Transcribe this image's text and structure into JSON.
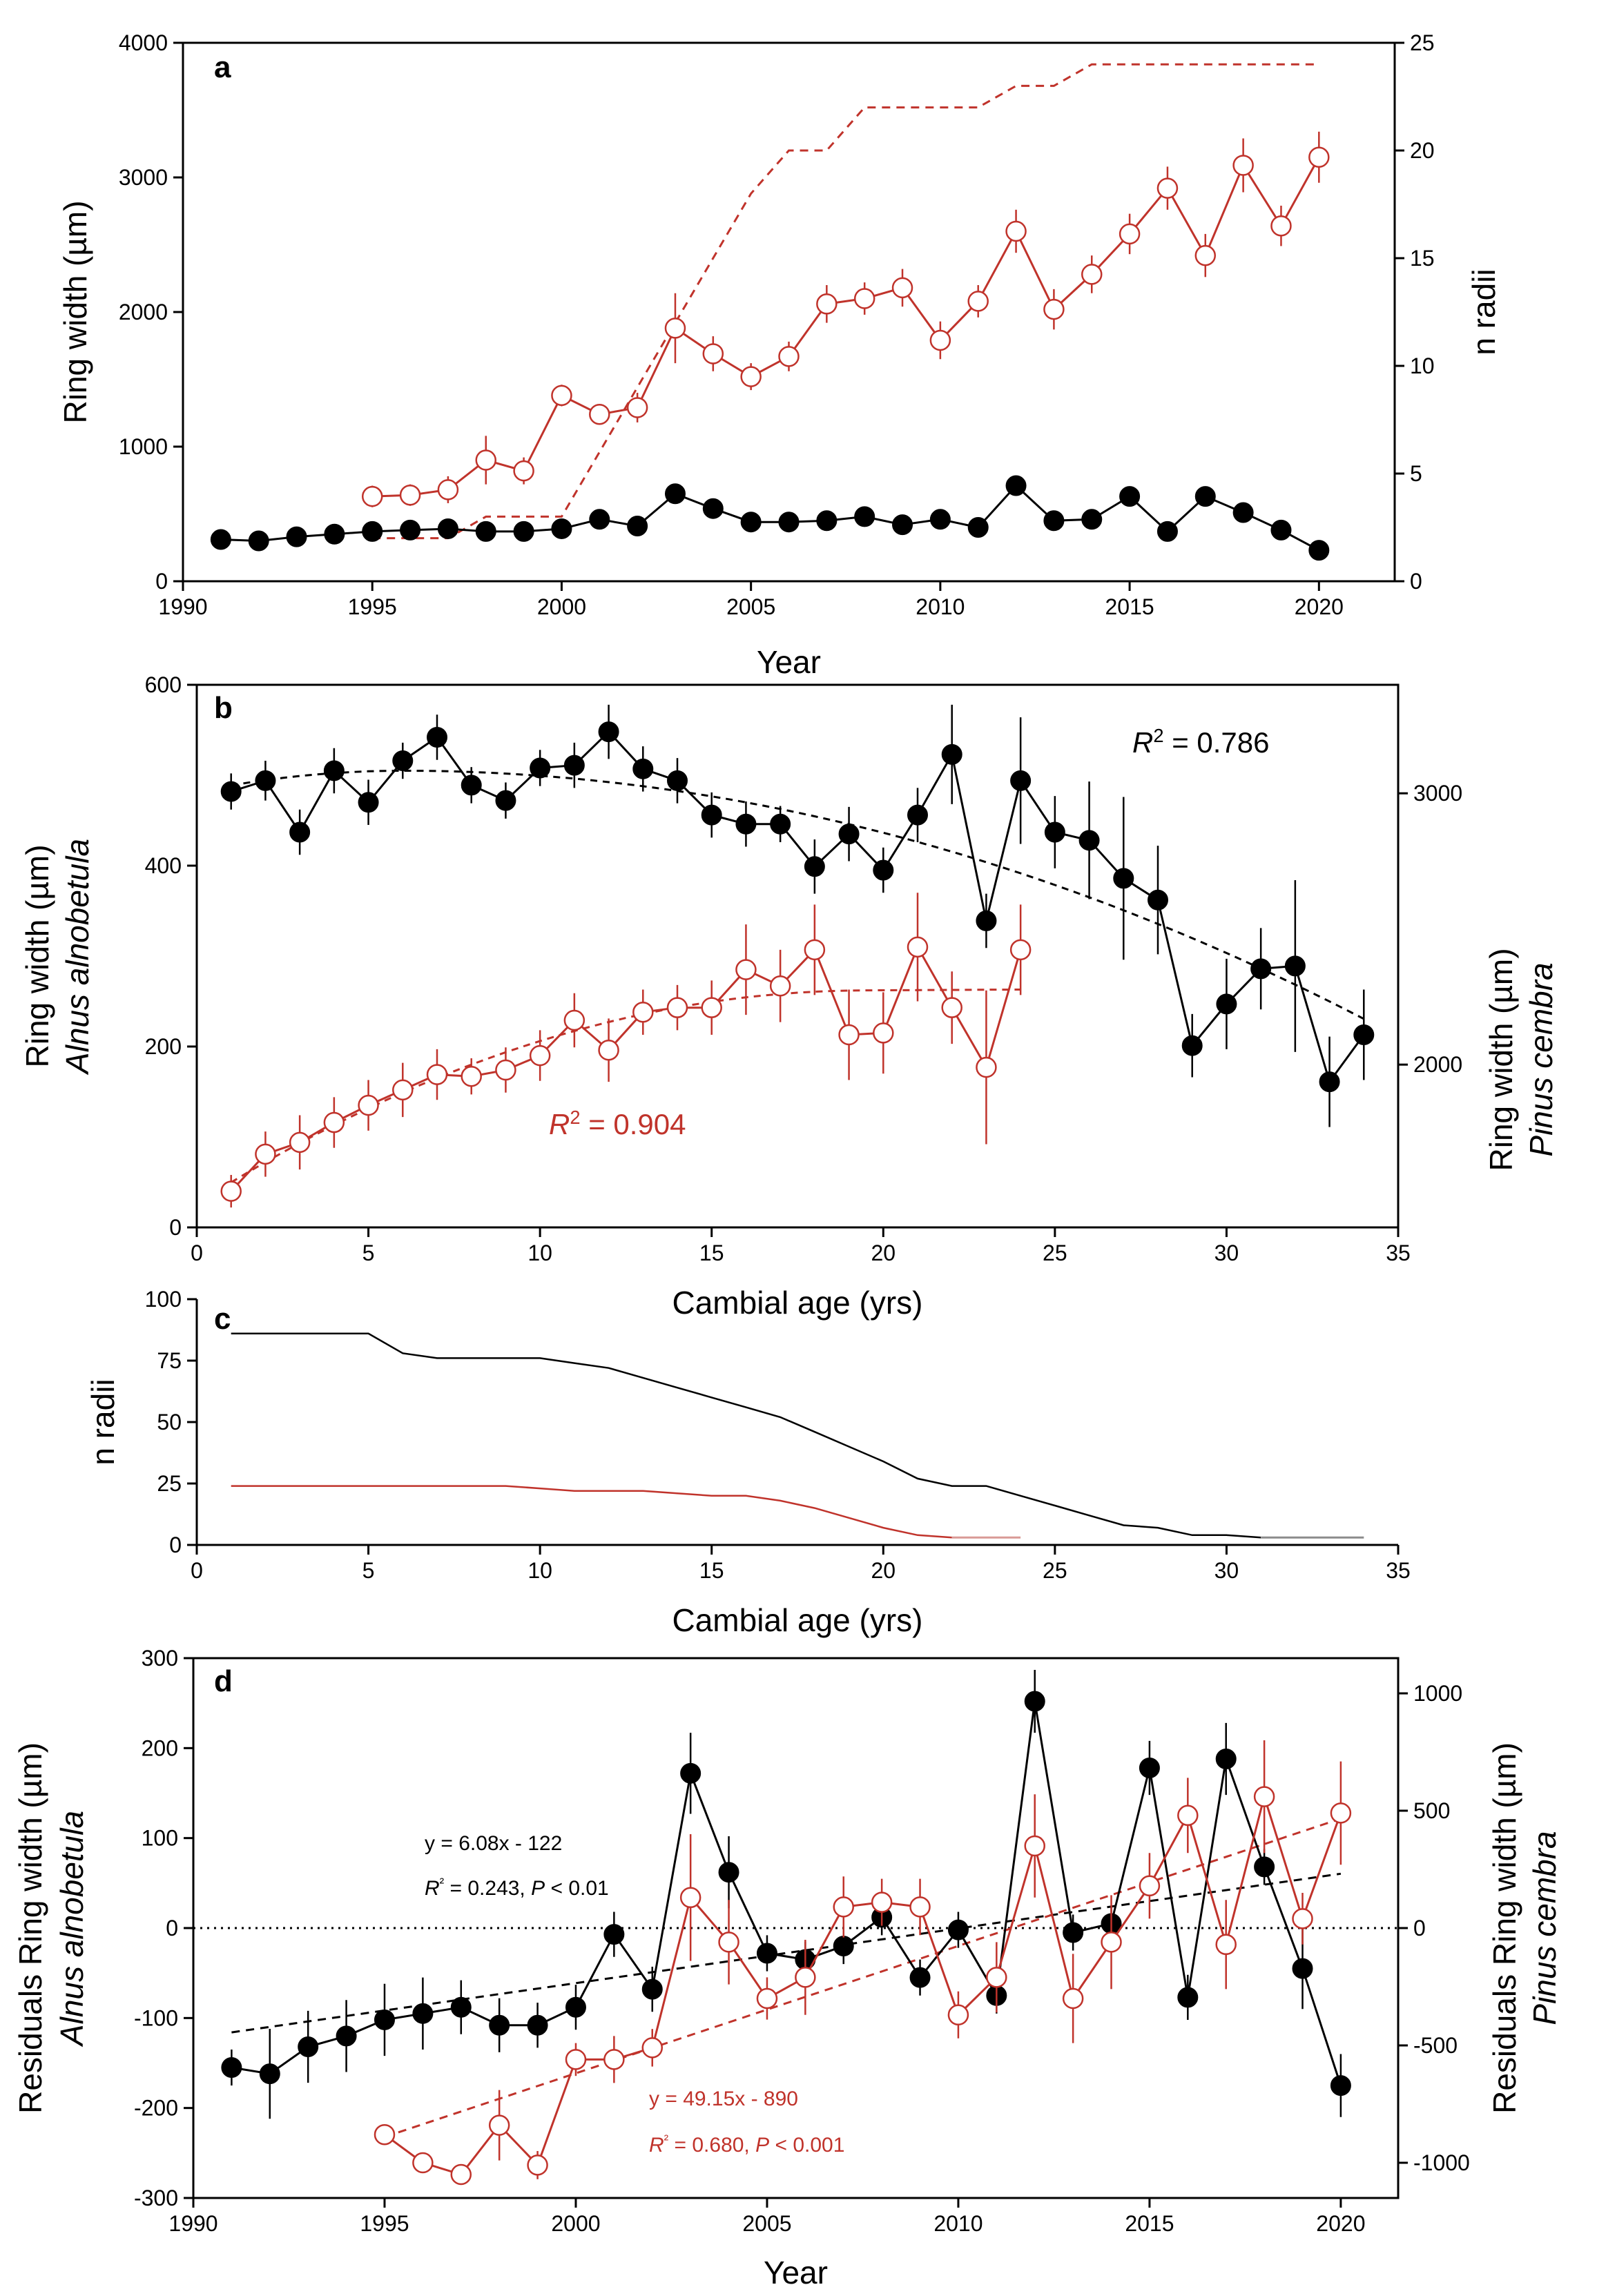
{
  "colors": {
    "alnus": "#000000",
    "pinus": "#c0332b",
    "axis": "#000000",
    "grey": "#8c8c8c"
  },
  "chart_data": [
    {
      "id": "a",
      "type": "line",
      "panel_label": "a",
      "xlabel": "Year",
      "ylabel": "Ring width (µm)",
      "y2label": "n radii",
      "xlim": [
        1990,
        2022
      ],
      "ylim": [
        0,
        4000
      ],
      "y2lim": [
        0,
        25
      ],
      "xticks": [
        1990,
        1995,
        2000,
        2005,
        2010,
        2015,
        2020
      ],
      "yticks": [
        0,
        1000,
        2000,
        3000,
        4000
      ],
      "y2ticks": [
        0,
        5,
        10,
        15,
        20,
        25
      ],
      "series": [
        {
          "name": "Alnus alnobetula",
          "marker": "filled",
          "axis": "left",
          "x": [
            1991,
            1992,
            1993,
            1994,
            1995,
            1996,
            1997,
            1998,
            1999,
            2000,
            2001,
            2002,
            2003,
            2004,
            2005,
            2006,
            2007,
            2008,
            2009,
            2010,
            2011,
            2012,
            2013,
            2014,
            2015,
            2016,
            2017,
            2018,
            2019,
            2020
          ],
          "y": [
            310,
            300,
            330,
            350,
            370,
            380,
            390,
            370,
            370,
            390,
            460,
            410,
            650,
            540,
            440,
            440,
            450,
            480,
            420,
            460,
            400,
            710,
            450,
            460,
            630,
            370,
            630,
            510,
            380,
            230
          ],
          "err": [
            20,
            20,
            20,
            20,
            20,
            20,
            20,
            20,
            20,
            20,
            30,
            30,
            50,
            40,
            30,
            30,
            30,
            40,
            30,
            30,
            30,
            40,
            30,
            30,
            40,
            30,
            40,
            40,
            30,
            30
          ]
        },
        {
          "name": "Pinus cembra",
          "marker": "open",
          "axis": "left",
          "x": [
            1995,
            1996,
            1997,
            1998,
            1999,
            2000,
            2001,
            2002,
            2003,
            2004,
            2005,
            2006,
            2007,
            2008,
            2009,
            2010,
            2011,
            2012,
            2013,
            2014,
            2015,
            2016,
            2017,
            2018,
            2019,
            2020
          ],
          "y": [
            630,
            640,
            680,
            900,
            820,
            1380,
            1240,
            1290,
            1880,
            1690,
            1520,
            1670,
            2060,
            2100,
            2180,
            1790,
            2080,
            2600,
            2020,
            2280,
            2580,
            2920,
            2420,
            3090,
            2640,
            3150
          ],
          "err": [
            80,
            80,
            100,
            180,
            100,
            80,
            60,
            110,
            260,
            130,
            100,
            110,
            140,
            120,
            140,
            140,
            120,
            160,
            150,
            140,
            150,
            160,
            160,
            200,
            150,
            190
          ]
        },
        {
          "name": "n radii Pinus cembra",
          "style": "dashed",
          "axis": "right",
          "x": [
            1995,
            1996,
            1997,
            1998,
            1999,
            2000,
            2001,
            2002,
            2003,
            2004,
            2005,
            2006,
            2007,
            2008,
            2009,
            2010,
            2011,
            2012,
            2013,
            2014,
            2015,
            2016,
            2017,
            2018,
            2019,
            2020
          ],
          "y": [
            2,
            2,
            2,
            3,
            3,
            3,
            6,
            9,
            12,
            15,
            18,
            20,
            20,
            22,
            22,
            22,
            22,
            23,
            23,
            24,
            24,
            24,
            24,
            24,
            24,
            24
          ]
        }
      ]
    },
    {
      "id": "b",
      "type": "scatter",
      "panel_label": "b",
      "xlabel": "Cambial age (yrs)",
      "ylabel": "Ring width (µm)",
      "ylabel_species": "Alnus alnobetula",
      "y2label": "Ring width (µm)",
      "y2label_species": "Pinus cembra",
      "xlim": [
        0,
        35
      ],
      "ylim": [
        0,
        600
      ],
      "y2lim": [
        1400,
        3400
      ],
      "xticks": [
        0,
        5,
        10,
        15,
        20,
        25,
        30,
        35
      ],
      "yticks": [
        0,
        200,
        400,
        600
      ],
      "y2ticks": [
        2000,
        3000
      ],
      "annotations": {
        "r2_alnus": "0.786",
        "r2_pinus": "0.904",
        "r2_prefix": "R",
        "r2_exp": "2",
        "r2_eq": " = "
      },
      "series": [
        {
          "name": "Alnus alnobetula",
          "marker": "filled",
          "axis": "left",
          "x": [
            1,
            2,
            3,
            4,
            5,
            6,
            7,
            8,
            9,
            10,
            11,
            12,
            13,
            14,
            15,
            16,
            17,
            18,
            19,
            20,
            21,
            22,
            23,
            24,
            25,
            26,
            27,
            28,
            29,
            30,
            31,
            32,
            33,
            34
          ],
          "y": [
            482,
            494,
            437,
            505,
            470,
            516,
            542,
            489,
            472,
            508,
            511,
            548,
            507,
            494,
            456,
            446,
            446,
            399,
            435,
            395,
            456,
            523,
            339,
            494,
            437,
            428,
            386,
            362,
            201,
            247,
            286,
            289,
            161,
            213
          ],
          "err": [
            20,
            22,
            25,
            25,
            25,
            20,
            25,
            20,
            20,
            20,
            25,
            30,
            25,
            25,
            25,
            25,
            20,
            30,
            30,
            25,
            30,
            55,
            30,
            70,
            40,
            65,
            90,
            60,
            35,
            50,
            45,
            95,
            50,
            50
          ]
        },
        {
          "name": "Pinus cembra",
          "marker": "open",
          "axis": "left",
          "x": [
            1,
            2,
            3,
            4,
            5,
            6,
            7,
            8,
            9,
            10,
            11,
            12,
            13,
            14,
            15,
            16,
            17,
            18,
            19,
            20,
            21,
            22,
            23,
            24
          ],
          "y": [
            40,
            81,
            94,
            116,
            135,
            152,
            169,
            167,
            174,
            190,
            229,
            196,
            238,
            243,
            243,
            285,
            267,
            307,
            213,
            215,
            310,
            243,
            177,
            307
          ],
          "err": [
            18,
            25,
            30,
            28,
            28,
            30,
            28,
            20,
            25,
            28,
            30,
            35,
            25,
            25,
            30,
            50,
            40,
            50,
            50,
            45,
            60,
            40,
            85,
            50
          ]
        },
        {
          "name": "Alnus fit",
          "style": "dashed",
          "fit": "alnus"
        },
        {
          "name": "Pinus fit",
          "style": "dashed",
          "fit": "pinus"
        }
      ]
    },
    {
      "id": "c",
      "type": "line",
      "panel_label": "c",
      "xlabel": "Cambial age (yrs)",
      "ylabel": "n radii",
      "xlim": [
        0,
        35
      ],
      "ylim": [
        0,
        100
      ],
      "xticks": [
        0,
        5,
        10,
        15,
        20,
        25,
        30,
        35
      ],
      "yticks": [
        0,
        25,
        50,
        75,
        100
      ],
      "series": [
        {
          "name": "Alnus alnobetula",
          "x": [
            1,
            2,
            3,
            4,
            5,
            6,
            7,
            8,
            9,
            10,
            11,
            12,
            13,
            14,
            15,
            16,
            17,
            18,
            19,
            20,
            21,
            22,
            23,
            24,
            25,
            26,
            27,
            28,
            29,
            30,
            31,
            32,
            33,
            34
          ],
          "y": [
            86,
            86,
            86,
            86,
            86,
            78,
            76,
            76,
            76,
            76,
            74,
            72,
            68,
            64,
            60,
            56,
            52,
            46,
            40,
            34,
            27,
            24,
            24,
            20,
            16,
            12,
            8,
            7,
            4,
            4,
            3,
            3,
            3,
            3
          ]
        },
        {
          "name": "Pinus cembra",
          "x": [
            1,
            2,
            3,
            4,
            5,
            6,
            7,
            8,
            9,
            10,
            11,
            12,
            13,
            14,
            15,
            16,
            17,
            18,
            19,
            20,
            21,
            22,
            23,
            24
          ],
          "y": [
            24,
            24,
            24,
            24,
            24,
            24,
            24,
            24,
            24,
            23,
            22,
            22,
            22,
            21,
            20,
            20,
            18,
            15,
            11,
            7,
            4,
            3,
            3,
            3
          ]
        }
      ]
    },
    {
      "id": "d",
      "type": "line",
      "panel_label": "d",
      "xlabel": "Year",
      "ylabel": "Residuals Ring width (µm)",
      "ylabel_species": "Alnus alnobetula",
      "y2label": "Residuals Ring width (µm)",
      "y2label_species": "Pinus cembra",
      "xlim": [
        1990,
        2021.5
      ],
      "ylim": [
        -300,
        300
      ],
      "y2lim": [
        -1150,
        1150
      ],
      "xticks": [
        1990,
        1995,
        2000,
        2005,
        2010,
        2015,
        2020
      ],
      "yticks": [
        -300,
        -200,
        -100,
        0,
        100,
        200,
        300
      ],
      "y2ticks": [
        -1000,
        -500,
        0,
        500,
        1000
      ],
      "annotations": {
        "alnus_eq": "y = 6.08x - 122",
        "alnus_r2": "0.243",
        "alnus_p": "P",
        "alnus_p_rest": " < 0.01",
        "pinus_eq": "y = 49.15x - 890",
        "pinus_r2": "0.680",
        "pinus_p": "P",
        "pinus_p_rest": " < 0.001",
        "r2_prefix": "R",
        "r2_exp": "²",
        "r2_eq": " = ",
        "sep": ", "
      },
      "series": [
        {
          "name": "Alnus alnobetula",
          "marker": "filled",
          "axis": "left",
          "x": [
            1991,
            1992,
            1993,
            1994,
            1995,
            1996,
            1997,
            1998,
            1999,
            2000,
            2001,
            2002,
            2003,
            2004,
            2005,
            2006,
            2007,
            2008,
            2009,
            2010,
            2011,
            2012,
            2013,
            2014,
            2015,
            2016,
            2017,
            2018,
            2019,
            2020
          ],
          "y": [
            -155,
            -162,
            -132,
            -120,
            -102,
            -95,
            -88,
            -108,
            -108,
            -88,
            -7,
            -68,
            172,
            62,
            -28,
            -35,
            -20,
            12,
            -55,
            -2,
            -75,
            252,
            -5,
            5,
            178,
            -77,
            188,
            68,
            -45,
            -175
          ],
          "err": [
            20,
            50,
            40,
            40,
            40,
            40,
            30,
            30,
            25,
            25,
            25,
            25,
            45,
            40,
            20,
            20,
            20,
            20,
            20,
            20,
            20,
            35,
            20,
            20,
            30,
            25,
            40,
            20,
            45,
            35
          ]
        },
        {
          "name": "Pinus cembra",
          "marker": "open",
          "axis": "right",
          "x": [
            1995,
            1996,
            1997,
            1998,
            1999,
            2000,
            2001,
            2002,
            2003,
            2004,
            2005,
            2006,
            2007,
            2008,
            2009,
            2010,
            2011,
            2012,
            2013,
            2014,
            2015,
            2016,
            2017,
            2018,
            2019,
            2020
          ],
          "y": [
            -880,
            -1000,
            -1050,
            -840,
            -1010,
            -560,
            -560,
            -510,
            130,
            -60,
            -300,
            -210,
            90,
            110,
            90,
            -370,
            -210,
            350,
            -300,
            -60,
            180,
            480,
            -70,
            560,
            40,
            490
          ],
          "err": [
            40,
            40,
            40,
            150,
            60,
            70,
            100,
            80,
            270,
            180,
            90,
            160,
            130,
            100,
            120,
            100,
            150,
            220,
            190,
            200,
            140,
            160,
            190,
            240,
            110,
            220
          ]
        },
        {
          "name": "Alnus trend",
          "style": "dashed",
          "slope": 6.08,
          "intercept": -122
        },
        {
          "name": "Pinus trend",
          "style": "dashed",
          "slope": 49.15,
          "intercept": -890
        }
      ]
    }
  ]
}
